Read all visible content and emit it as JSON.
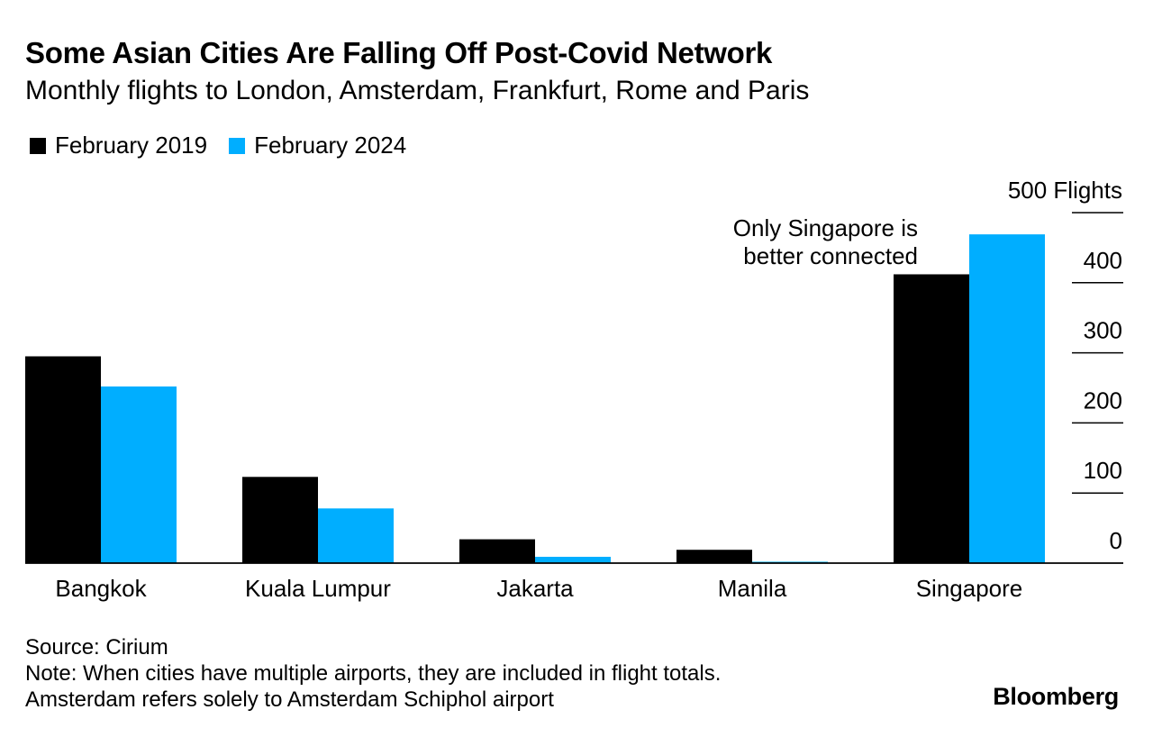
{
  "chart_data": {
    "type": "bar",
    "title": "Some Asian Cities Are Falling Off Post-Covid Network",
    "subtitle": "Monthly flights to London, Amsterdam, Frankfurt, Rome and Paris",
    "categories": [
      "Bangkok",
      "Kuala Lumpur",
      "Jakarta",
      "Manila",
      "Singapore"
    ],
    "series": [
      {
        "name": "February 2019",
        "color": "#000000",
        "values": [
          295,
          123,
          34,
          19,
          412
        ]
      },
      {
        "name": "February 2024",
        "color": "#00aeff",
        "values": [
          252,
          78,
          9,
          2,
          469
        ]
      }
    ],
    "ylim": [
      0,
      500
    ],
    "yticks": [
      0,
      100,
      200,
      300,
      400,
      500
    ],
    "ytick_labels": [
      "0",
      "100",
      "200",
      "300",
      "400",
      "500 Flights"
    ],
    "ylabel": "",
    "xlabel": "",
    "annotation": {
      "line1": "Only Singapore is",
      "line2": "better connected"
    },
    "legend_position": "top-left"
  },
  "footer": {
    "source": "Source: Cirium",
    "note": "Note: When cities have multiple airports, they are included in flight totals.",
    "note2": "Amsterdam refers solely to Amsterdam Schiphol airport"
  },
  "brand": "Bloomberg"
}
